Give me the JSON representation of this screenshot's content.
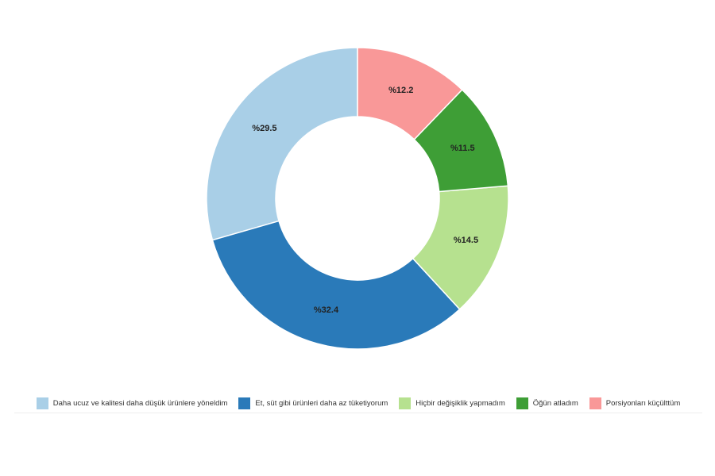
{
  "chart_data": {
    "type": "pie",
    "categories": [
      "Daha ucuz ve kalitesi daha düşük ürünlere yöneldim",
      "Et, süt gibi ürünleri daha az tüketiyorum",
      "Hiçbir değişiklik yapmadım",
      "Öğün atladım",
      "Porsiyonları küçülttüm"
    ],
    "values": [
      29.5,
      32.4,
      14.5,
      11.5,
      12.2
    ],
    "value_labels": [
      "%29.5",
      "%32.4",
      "%14.5",
      "%11.5",
      "%12.2"
    ],
    "colors": [
      "#a9cfe7",
      "#2a7ab9",
      "#b6e18f",
      "#3e9e36",
      "#f99898"
    ]
  }
}
